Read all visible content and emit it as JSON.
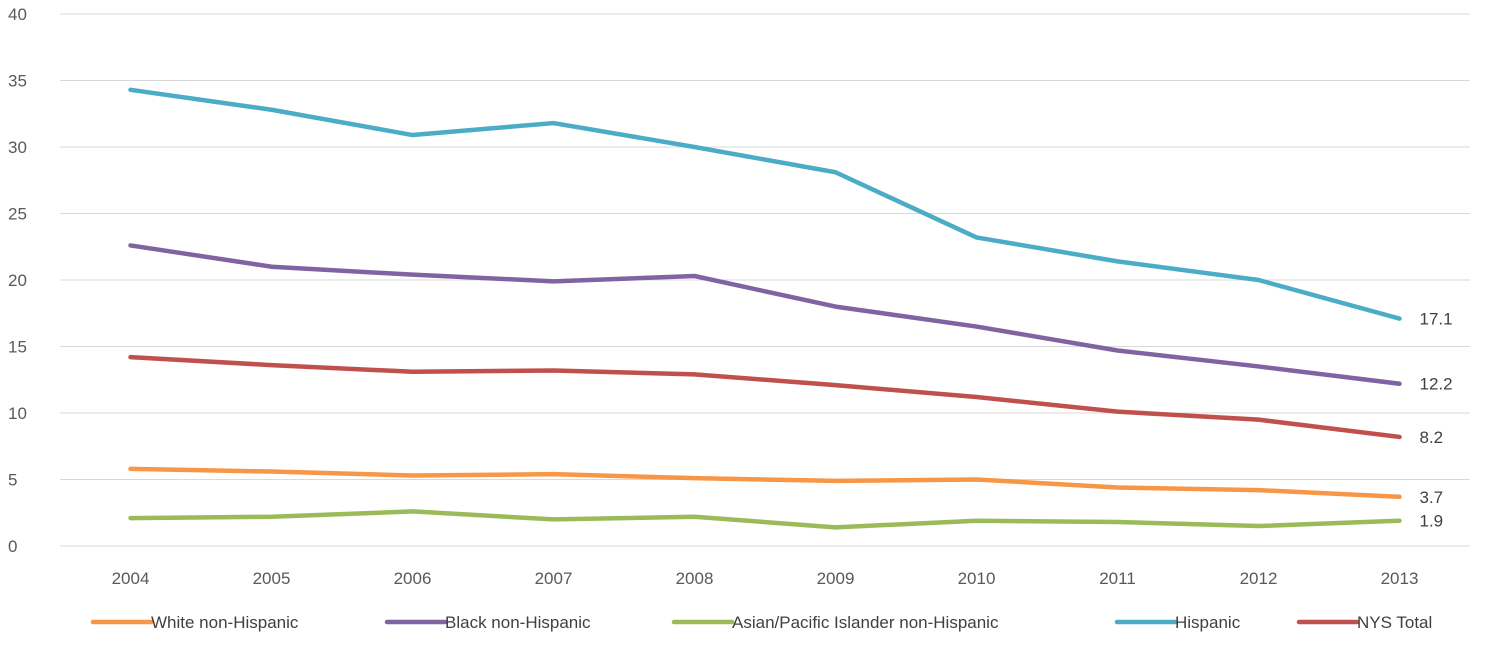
{
  "chart_data": {
    "type": "line",
    "title": "",
    "xlabel": "",
    "ylabel": "",
    "ylim": [
      0,
      40
    ],
    "y_ticks": [
      "0",
      "5",
      "10",
      "15",
      "20",
      "25",
      "30",
      "35",
      "40"
    ],
    "grid": "horizontal",
    "legend_position": "bottom",
    "categories": [
      "2004",
      "2005",
      "2006",
      "2007",
      "2008",
      "2009",
      "2010",
      "2011",
      "2012",
      "2013"
    ],
    "series": [
      {
        "name": "White non-Hispanic",
        "color": "#F79646",
        "values": [
          5.8,
          5.6,
          5.3,
          5.4,
          5.1,
          4.9,
          5.0,
          4.4,
          4.2,
          3.7
        ],
        "end_label": "3.7"
      },
      {
        "name": "Black non-Hispanic",
        "color": "#8064A2",
        "values": [
          22.6,
          21.0,
          20.4,
          19.9,
          20.3,
          18.0,
          16.5,
          14.7,
          13.5,
          12.2
        ],
        "end_label": "12.2"
      },
      {
        "name": "Asian/Pacific Islander non-Hispanic",
        "color": "#9BBB59",
        "values": [
          2.1,
          2.2,
          2.6,
          2.0,
          2.2,
          1.4,
          1.9,
          1.8,
          1.5,
          1.9
        ],
        "end_label": "1.9"
      },
      {
        "name": "Hispanic",
        "color": "#4BACC6",
        "values": [
          34.3,
          32.8,
          30.9,
          31.8,
          30.0,
          28.1,
          23.2,
          21.4,
          20.0,
          17.1
        ],
        "end_label": "17.1"
      },
      {
        "name": "NYS Total",
        "color": "#C0504D",
        "values": [
          14.2,
          13.6,
          13.1,
          13.2,
          12.9,
          12.1,
          11.2,
          10.1,
          9.5,
          8.2
        ],
        "end_label": "8.2"
      }
    ]
  }
}
